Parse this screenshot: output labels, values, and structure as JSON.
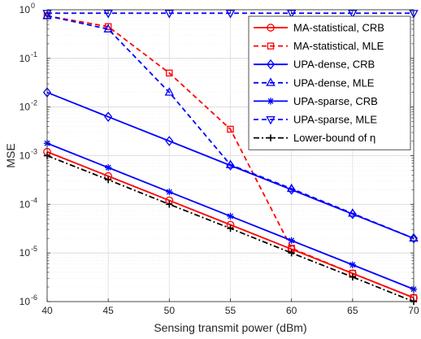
{
  "chart_data": {
    "type": "line",
    "xlabel": "Sensing transmit power (dBm)",
    "ylabel": "MSE",
    "yscale": "log",
    "xlim": [
      40,
      70
    ],
    "ylim": [
      1e-06,
      1
    ],
    "x_ticks": [
      40,
      45,
      50,
      55,
      60,
      65,
      70
    ],
    "y_ticks": [
      {
        "value": 1e-06,
        "label": "10^-6"
      },
      {
        "value": 1e-05,
        "label": "10^-5"
      },
      {
        "value": 0.0001,
        "label": "10^-4"
      },
      {
        "value": 0.001,
        "label": "10^-3"
      },
      {
        "value": 0.01,
        "label": "10^-2"
      },
      {
        "value": 0.1,
        "label": "10^-1"
      },
      {
        "value": 1,
        "label": "10^0"
      }
    ],
    "grid": true,
    "minor_grid": true,
    "legend_position": "top-right",
    "x": [
      40,
      45,
      50,
      55,
      60,
      65,
      70
    ],
    "series": [
      {
        "name": "MA-statistical, CRB",
        "color": "#ff0000",
        "dash": "solid",
        "marker": "circle",
        "values": [
          0.0012,
          0.00038,
          0.00012,
          3.8e-05,
          1.2e-05,
          3.8e-06,
          1.2e-06
        ]
      },
      {
        "name": "MA-statistical, MLE",
        "color": "#ff0000",
        "dash": "dashed",
        "marker": "square",
        "values": [
          0.75,
          0.45,
          0.05,
          0.0035,
          1.25e-05,
          3.8e-06,
          1.2e-06
        ]
      },
      {
        "name": "UPA-dense, CRB",
        "color": "#0000ff",
        "dash": "solid",
        "marker": "diamond",
        "values": [
          0.02,
          0.0063,
          0.002,
          0.00063,
          0.0002,
          6.3e-05,
          2e-05
        ]
      },
      {
        "name": "UPA-dense, MLE",
        "color": "#0000ff",
        "dash": "dashed",
        "marker": "triangle-up",
        "values": [
          0.75,
          0.4,
          0.02,
          0.00065,
          0.00021,
          6.5e-05,
          2e-05
        ]
      },
      {
        "name": "UPA-sparse, CRB",
        "color": "#0000ff",
        "dash": "solid",
        "marker": "star",
        "values": [
          0.0018,
          0.00057,
          0.00018,
          5.7e-05,
          1.8e-05,
          5.7e-06,
          1.8e-06
        ]
      },
      {
        "name": "UPA-sparse, MLE",
        "color": "#0000ff",
        "dash": "dashed",
        "marker": "triangle-down",
        "values": [
          0.85,
          0.85,
          0.85,
          0.85,
          0.85,
          0.85,
          0.85
        ]
      },
      {
        "name": "Lower-bound of η",
        "color": "#000000",
        "dash": "dashdot",
        "marker": "plus",
        "values": [
          0.001,
          0.00032,
          0.0001,
          3.2e-05,
          1e-05,
          3.2e-06,
          1e-06
        ]
      }
    ]
  }
}
